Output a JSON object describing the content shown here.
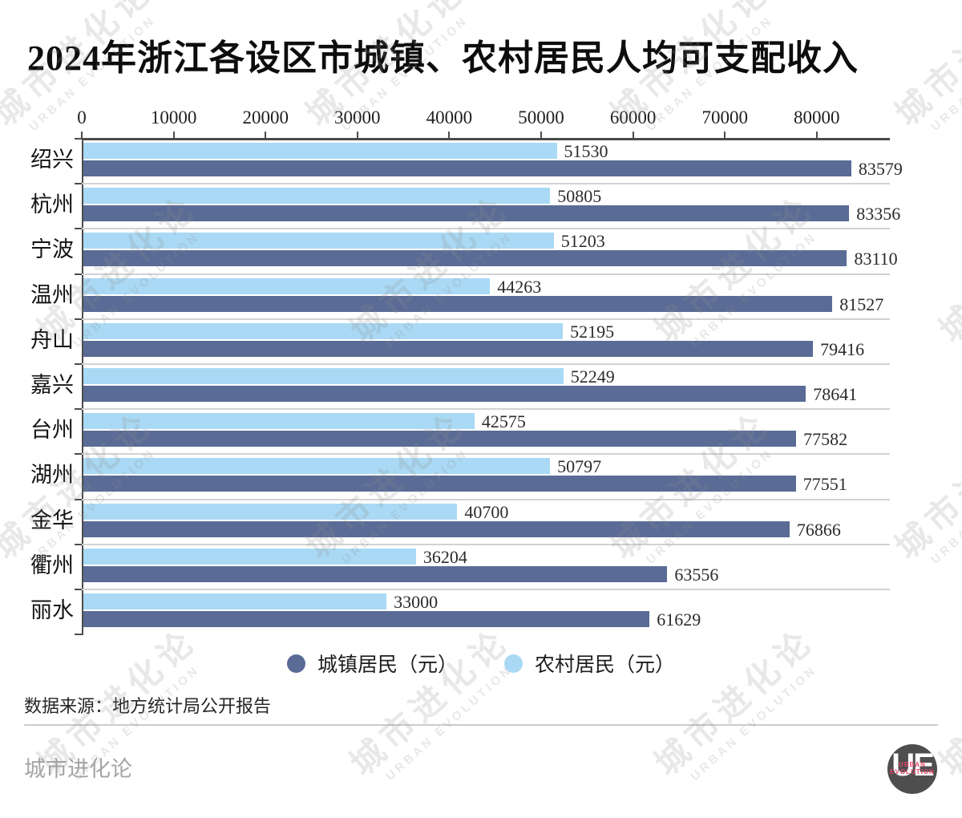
{
  "title": "2024年浙江各设区市城镇、农村居民人均可支配收入",
  "chart_data": {
    "type": "bar",
    "orientation": "horizontal",
    "title": "2024年浙江各设区市城镇、农村居民人均可支配收入",
    "categories": [
      "绍兴",
      "杭州",
      "宁波",
      "温州",
      "舟山",
      "嘉兴",
      "台州",
      "湖州",
      "金华",
      "衢州",
      "丽水"
    ],
    "series": [
      {
        "name": "城镇居民（元）",
        "color": "#5a6c96",
        "values": [
          83579,
          83356,
          83110,
          81527,
          79416,
          78641,
          77582,
          77551,
          76866,
          63556,
          61629
        ]
      },
      {
        "name": "农村居民（元）",
        "color": "#a9d9f4",
        "values": [
          51530,
          50805,
          51203,
          44263,
          52195,
          52249,
          42575,
          50797,
          40700,
          36204,
          33000
        ]
      }
    ],
    "row_order_top_to_bottom_within_group": [
      "农村居民（元）",
      "城镇居民（元）"
    ],
    "x_ticks": [
      0,
      10000,
      20000,
      30000,
      40000,
      50000,
      60000,
      70000,
      80000
    ],
    "xlim": [
      0,
      87900
    ],
    "value_labels": true,
    "grid": "category-separators",
    "legend_position": "bottom"
  },
  "legend": {
    "items": [
      {
        "label": "城镇居民（元）",
        "color": "#5a6c96"
      },
      {
        "label": "农村居民（元）",
        "color": "#a9d9f4"
      }
    ]
  },
  "source": "数据来源：地方统计局公开报告",
  "footer": {
    "brand": "城市进化论"
  },
  "watermark": {
    "line1": "城市进化论",
    "line2": "URBAN EVOLUTION"
  },
  "logo": {
    "monogram": "UE",
    "line1": "URBAN",
    "line2": "EVOLUTION"
  },
  "colors": {
    "urban": "#5a6c96",
    "rural": "#a9d9f4",
    "axis": "#4c4c4c",
    "separator": "#d2d2d2"
  }
}
